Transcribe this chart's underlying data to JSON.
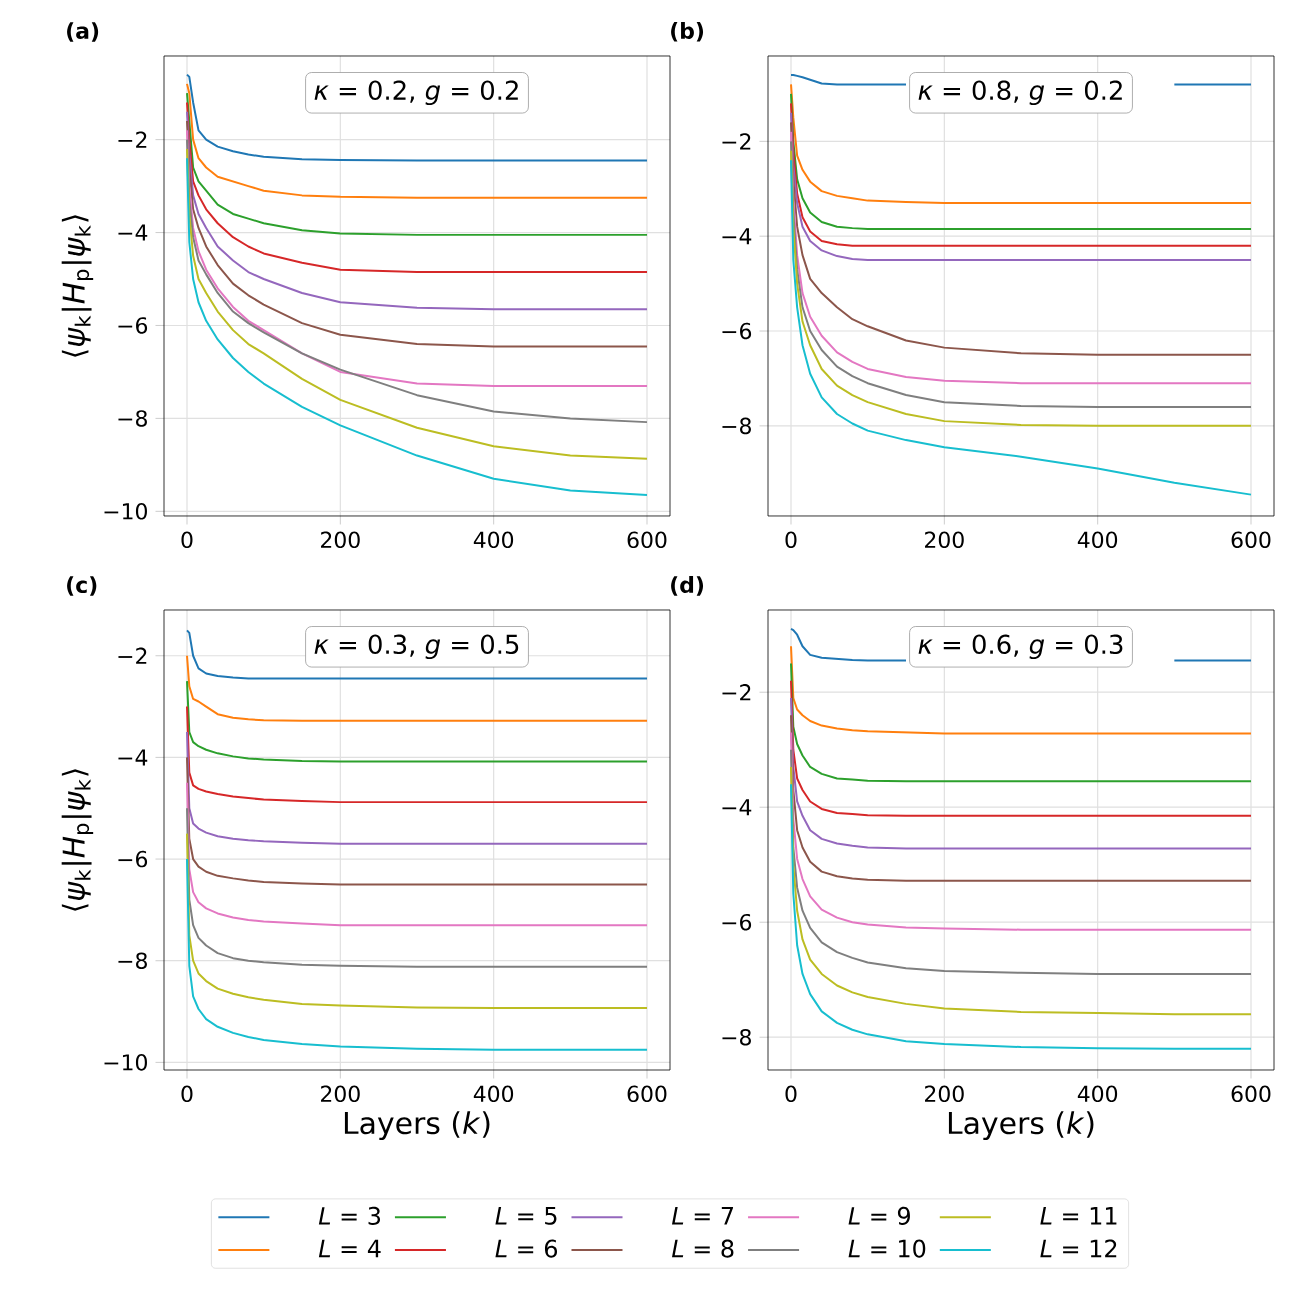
{
  "chart_data": [
    {
      "type": "line",
      "title": "(a)",
      "ylabel": "⟨*ψ*$_{k}$|*H*$_{p}$|*ψ*$_{k}$⟩",
      "annotations": [
        "*κ* = 0.2, *g* = 0.2"
      ],
      "grid": true,
      "legend": "bottom",
      "x": [
        0,
        3,
        8,
        15,
        25,
        40,
        60,
        80,
        100,
        150,
        200,
        300,
        400,
        500,
        600
      ],
      "xlim": [
        -30,
        630
      ],
      "ylim": [
        -10.1,
        -0.2
      ],
      "xticks": [
        0,
        200,
        400,
        600
      ],
      "yticks": [
        {
          "value": -10,
          "label": "−10"
        },
        {
          "value": -8,
          "label": "−8"
        },
        {
          "value": -6,
          "label": "−6"
        },
        {
          "value": -4,
          "label": "−4"
        },
        {
          "value": -2,
          "label": "−2"
        }
      ],
      "series": [
        {
          "name": "*L* = 3",
          "color": "#1f77b4",
          "values": [
            -0.6,
            -0.65,
            -1.2,
            -1.8,
            -2.0,
            -2.15,
            -2.25,
            -2.32,
            -2.37,
            -2.42,
            -2.44,
            -2.45,
            -2.45,
            -2.45,
            -2.45
          ]
        },
        {
          "name": "*L* = 4",
          "color": "#ff7f0e",
          "values": [
            -0.8,
            -1.0,
            -2.0,
            -2.4,
            -2.6,
            -2.8,
            -2.9,
            -3.0,
            -3.1,
            -3.2,
            -3.23,
            -3.25,
            -3.25,
            -3.25,
            -3.25
          ]
        },
        {
          "name": "*L* = 5",
          "color": "#2ca02c",
          "values": [
            -1.0,
            -1.6,
            -2.6,
            -2.9,
            -3.1,
            -3.4,
            -3.6,
            -3.7,
            -3.8,
            -3.95,
            -4.02,
            -4.05,
            -4.05,
            -4.05,
            -4.05
          ]
        },
        {
          "name": "*L* = 6",
          "color": "#d62728",
          "values": [
            -1.2,
            -2.0,
            -2.9,
            -3.2,
            -3.5,
            -3.8,
            -4.1,
            -4.3,
            -4.45,
            -4.65,
            -4.8,
            -4.85,
            -4.85,
            -4.85,
            -4.85
          ]
        },
        {
          "name": "*L* = 7",
          "color": "#9467bd",
          "values": [
            -1.4,
            -2.3,
            -3.2,
            -3.6,
            -3.9,
            -4.3,
            -4.6,
            -4.85,
            -5.0,
            -5.3,
            -5.5,
            -5.62,
            -5.65,
            -5.65,
            -5.65
          ]
        },
        {
          "name": "*L* = 8",
          "color": "#8c564b",
          "values": [
            -1.6,
            -2.6,
            -3.5,
            -3.9,
            -4.3,
            -4.7,
            -5.1,
            -5.35,
            -5.55,
            -5.95,
            -6.2,
            -6.4,
            -6.45,
            -6.45,
            -6.45
          ]
        },
        {
          "name": "*L* = 9",
          "color": "#e377c2",
          "values": [
            -1.8,
            -3.0,
            -3.9,
            -4.4,
            -4.8,
            -5.2,
            -5.6,
            -5.9,
            -6.1,
            -6.6,
            -7.0,
            -7.25,
            -7.3,
            -7.3,
            -7.3
          ]
        },
        {
          "name": "*L* = 10",
          "color": "#7f7f7f",
          "values": [
            -2.0,
            -3.3,
            -4.1,
            -4.6,
            -4.9,
            -5.3,
            -5.7,
            -5.95,
            -6.15,
            -6.6,
            -6.95,
            -7.5,
            -7.85,
            -8.0,
            -8.08
          ]
        },
        {
          "name": "*L* = 11",
          "color": "#bcbd22",
          "values": [
            -2.2,
            -3.6,
            -4.5,
            -5.0,
            -5.3,
            -5.7,
            -6.1,
            -6.4,
            -6.6,
            -7.15,
            -7.6,
            -8.2,
            -8.6,
            -8.8,
            -8.87
          ]
        },
        {
          "name": "*L* = 12",
          "color": "#17becf",
          "values": [
            -2.4,
            -4.2,
            -5.0,
            -5.5,
            -5.9,
            -6.3,
            -6.7,
            -7.0,
            -7.25,
            -7.75,
            -8.15,
            -8.8,
            -9.3,
            -9.55,
            -9.65
          ]
        }
      ]
    },
    {
      "type": "line",
      "title": "(b)",
      "annotations": [
        "*κ* = 0.8, *g* = 0.2"
      ],
      "grid": true,
      "x": [
        0,
        3,
        8,
        15,
        25,
        40,
        60,
        80,
        100,
        150,
        200,
        300,
        400,
        500,
        600
      ],
      "xlim": [
        -30,
        630
      ],
      "ylim": [
        -9.9,
        -0.2
      ],
      "xticks": [
        0,
        200,
        400,
        600
      ],
      "yticks": [
        {
          "value": -8,
          "label": "−8"
        },
        {
          "value": -6,
          "label": "−6"
        },
        {
          "value": -4,
          "label": "−4"
        },
        {
          "value": -2,
          "label": "−2"
        }
      ],
      "series": [
        {
          "color": "#1f77b4",
          "values": [
            -0.6,
            -0.6,
            -0.62,
            -0.65,
            -0.7,
            -0.78,
            -0.8,
            -0.8,
            -0.8,
            -0.8,
            null,
            null,
            null,
            -0.8,
            -0.8
          ]
        },
        {
          "color": "#ff7f0e",
          "values": [
            -0.8,
            -1.5,
            -2.3,
            -2.6,
            -2.85,
            -3.05,
            -3.15,
            -3.2,
            -3.25,
            -3.28,
            -3.3,
            -3.3,
            -3.3,
            -3.3,
            -3.3
          ]
        },
        {
          "color": "#2ca02c",
          "values": [
            -1.0,
            -2.0,
            -2.8,
            -3.2,
            -3.5,
            -3.7,
            -3.8,
            -3.83,
            -3.85,
            -3.85,
            -3.85,
            -3.85,
            -3.85,
            -3.85,
            -3.85
          ]
        },
        {
          "color": "#d62728",
          "values": [
            -1.2,
            -2.2,
            -3.1,
            -3.6,
            -3.9,
            -4.1,
            -4.17,
            -4.2,
            -4.2,
            -4.2,
            -4.2,
            -4.2,
            -4.2,
            -4.2,
            -4.2
          ]
        },
        {
          "color": "#9467bd",
          "values": [
            -1.4,
            -2.5,
            -3.3,
            -3.8,
            -4.1,
            -4.3,
            -4.42,
            -4.48,
            -4.5,
            -4.5,
            -4.5,
            -4.5,
            -4.5,
            -4.5,
            -4.5
          ]
        },
        {
          "color": "#8c564b",
          "values": [
            -1.6,
            -2.8,
            -3.8,
            -4.4,
            -4.9,
            -5.2,
            -5.5,
            -5.75,
            -5.9,
            -6.2,
            -6.35,
            -6.47,
            -6.5,
            -6.5,
            -6.5
          ]
        },
        {
          "color": "#e377c2",
          "values": [
            -1.8,
            -3.2,
            -4.4,
            -5.2,
            -5.7,
            -6.1,
            -6.45,
            -6.65,
            -6.8,
            -6.97,
            -7.05,
            -7.1,
            -7.1,
            -7.1,
            -7.1
          ]
        },
        {
          "color": "#7f7f7f",
          "values": [
            -2.0,
            -3.5,
            -4.7,
            -5.5,
            -6.0,
            -6.4,
            -6.75,
            -6.95,
            -7.1,
            -7.35,
            -7.5,
            -7.58,
            -7.6,
            -7.6,
            -7.6
          ]
        },
        {
          "color": "#bcbd22",
          "values": [
            -2.2,
            -3.8,
            -5.0,
            -5.8,
            -6.3,
            -6.8,
            -7.15,
            -7.35,
            -7.5,
            -7.75,
            -7.9,
            -7.98,
            -8.0,
            -8.0,
            -8.0
          ]
        },
        {
          "color": "#17becf",
          "values": [
            -2.4,
            -4.5,
            -5.5,
            -6.3,
            -6.9,
            -7.4,
            -7.75,
            -7.95,
            -8.1,
            -8.3,
            -8.45,
            -8.65,
            -8.9,
            -9.2,
            -9.45
          ]
        }
      ]
    },
    {
      "type": "line",
      "title": "(c)",
      "xlabel": "Layers (*k*)",
      "ylabel": "⟨*ψ*$_{k}$|*H*$_{p}$|*ψ*$_{k}$⟩",
      "annotations": [
        "*κ* = 0.3, *g* = 0.5"
      ],
      "grid": true,
      "x": [
        0,
        3,
        8,
        15,
        25,
        40,
        60,
        80,
        100,
        150,
        200,
        300,
        400,
        500,
        600
      ],
      "xlim": [
        -30,
        630
      ],
      "ylim": [
        -10.15,
        -1.1
      ],
      "xticks": [
        0,
        200,
        400,
        600
      ],
      "yticks": [
        {
          "value": -10,
          "label": "−10"
        },
        {
          "value": -8,
          "label": "−8"
        },
        {
          "value": -6,
          "label": "−6"
        },
        {
          "value": -4,
          "label": "−4"
        },
        {
          "value": -2,
          "label": "−2"
        }
      ],
      "series": [
        {
          "color": "#1f77b4",
          "values": [
            -1.5,
            -1.55,
            -2.0,
            -2.25,
            -2.35,
            -2.4,
            -2.43,
            -2.45,
            -2.45,
            -2.45,
            -2.45,
            -2.45,
            -2.45,
            -2.45,
            -2.45
          ]
        },
        {
          "color": "#ff7f0e",
          "values": [
            -2.0,
            -2.6,
            -2.85,
            -2.9,
            -3.0,
            -3.15,
            -3.22,
            -3.25,
            -3.27,
            -3.28,
            -3.28,
            -3.28,
            -3.28,
            -3.28,
            -3.28
          ]
        },
        {
          "color": "#2ca02c",
          "values": [
            -2.5,
            -3.5,
            -3.7,
            -3.78,
            -3.85,
            -3.92,
            -3.98,
            -4.02,
            -4.04,
            -4.07,
            -4.08,
            -4.08,
            -4.08,
            -4.08,
            -4.08
          ]
        },
        {
          "color": "#d62728",
          "values": [
            -3.0,
            -4.3,
            -4.55,
            -4.62,
            -4.67,
            -4.72,
            -4.77,
            -4.8,
            -4.83,
            -4.86,
            -4.88,
            -4.88,
            -4.88,
            -4.88,
            -4.88
          ]
        },
        {
          "color": "#9467bd",
          "values": [
            -3.5,
            -5.0,
            -5.3,
            -5.4,
            -5.48,
            -5.55,
            -5.6,
            -5.63,
            -5.65,
            -5.68,
            -5.7,
            -5.7,
            -5.7,
            -5.7,
            -5.7
          ]
        },
        {
          "color": "#8c564b",
          "values": [
            -4.0,
            -5.6,
            -6.0,
            -6.15,
            -6.25,
            -6.33,
            -6.38,
            -6.42,
            -6.45,
            -6.48,
            -6.5,
            -6.5,
            -6.5,
            -6.5,
            -6.5
          ]
        },
        {
          "color": "#e377c2",
          "values": [
            -4.5,
            -6.2,
            -6.65,
            -6.85,
            -6.97,
            -7.07,
            -7.15,
            -7.2,
            -7.23,
            -7.27,
            -7.3,
            -7.3,
            -7.3,
            -7.3,
            -7.3
          ]
        },
        {
          "color": "#7f7f7f",
          "values": [
            -5.0,
            -6.8,
            -7.3,
            -7.55,
            -7.7,
            -7.85,
            -7.95,
            -8.0,
            -8.03,
            -8.08,
            -8.1,
            -8.12,
            -8.12,
            -8.12,
            -8.12
          ]
        },
        {
          "color": "#bcbd22",
          "values": [
            -5.5,
            -7.5,
            -8.0,
            -8.25,
            -8.4,
            -8.55,
            -8.65,
            -8.72,
            -8.77,
            -8.85,
            -8.88,
            -8.92,
            -8.93,
            -8.93,
            -8.93
          ]
        },
        {
          "color": "#17becf",
          "values": [
            -6.0,
            -8.1,
            -8.7,
            -8.95,
            -9.15,
            -9.3,
            -9.42,
            -9.5,
            -9.56,
            -9.64,
            -9.69,
            -9.73,
            -9.75,
            -9.75,
            -9.75
          ]
        }
      ]
    },
    {
      "type": "line",
      "title": "(d)",
      "xlabel": "Layers (*k*)",
      "annotations": [
        "*κ* = 0.6, *g* = 0.3"
      ],
      "grid": true,
      "x": [
        0,
        3,
        8,
        15,
        25,
        40,
        60,
        80,
        100,
        150,
        200,
        300,
        400,
        500,
        600
      ],
      "xlim": [
        -30,
        630
      ],
      "ylim": [
        -8.57,
        -0.57
      ],
      "xticks": [
        0,
        200,
        400,
        600
      ],
      "yticks": [
        {
          "value": -8,
          "label": "−8"
        },
        {
          "value": -6,
          "label": "−6"
        },
        {
          "value": -4,
          "label": "−4"
        },
        {
          "value": -2,
          "label": "−2"
        }
      ],
      "series": [
        {
          "color": "#1f77b4",
          "values": [
            -0.9,
            -0.92,
            -1.0,
            -1.2,
            -1.35,
            -1.4,
            -1.42,
            -1.44,
            -1.45,
            -1.45,
            null,
            null,
            null,
            -1.45,
            -1.45
          ]
        },
        {
          "color": "#ff7f0e",
          "values": [
            -1.2,
            -2.1,
            -2.3,
            -2.4,
            -2.5,
            -2.58,
            -2.63,
            -2.66,
            -2.68,
            -2.7,
            -2.72,
            -2.72,
            -2.72,
            -2.72,
            -2.72
          ]
        },
        {
          "color": "#2ca02c",
          "values": [
            -1.5,
            -2.6,
            -2.9,
            -3.1,
            -3.3,
            -3.42,
            -3.5,
            -3.52,
            -3.54,
            -3.55,
            -3.55,
            -3.55,
            -3.55,
            -3.55,
            -3.55
          ]
        },
        {
          "color": "#d62728",
          "values": [
            -1.8,
            -3.0,
            -3.5,
            -3.7,
            -3.9,
            -4.03,
            -4.1,
            -4.12,
            -4.14,
            -4.15,
            -4.15,
            -4.15,
            -4.15,
            -4.15,
            -4.15
          ]
        },
        {
          "color": "#9467bd",
          "values": [
            -2.1,
            -3.3,
            -3.9,
            -4.15,
            -4.4,
            -4.55,
            -4.63,
            -4.67,
            -4.7,
            -4.72,
            -4.72,
            -4.72,
            -4.72,
            -4.72,
            -4.72
          ]
        },
        {
          "color": "#8c564b",
          "values": [
            -2.4,
            -3.7,
            -4.4,
            -4.7,
            -4.95,
            -5.12,
            -5.2,
            -5.24,
            -5.26,
            -5.28,
            -5.28,
            -5.28,
            -5.28,
            -5.28,
            -5.28
          ]
        },
        {
          "color": "#e377c2",
          "values": [
            -2.7,
            -4.2,
            -4.9,
            -5.25,
            -5.55,
            -5.78,
            -5.92,
            -6.0,
            -6.04,
            -6.09,
            -6.11,
            -6.13,
            -6.13,
            -6.13,
            -6.13
          ]
        },
        {
          "color": "#7f7f7f",
          "values": [
            -3.0,
            -4.7,
            -5.4,
            -5.8,
            -6.1,
            -6.35,
            -6.52,
            -6.62,
            -6.7,
            -6.8,
            -6.85,
            -6.88,
            -6.9,
            -6.9,
            -6.9
          ]
        },
        {
          "color": "#bcbd22",
          "values": [
            -3.3,
            -5.0,
            -5.8,
            -6.3,
            -6.65,
            -6.9,
            -7.1,
            -7.22,
            -7.3,
            -7.42,
            -7.5,
            -7.56,
            -7.58,
            -7.6,
            -7.6
          ]
        },
        {
          "color": "#17becf",
          "values": [
            -3.6,
            -5.5,
            -6.4,
            -6.9,
            -7.25,
            -7.55,
            -7.75,
            -7.87,
            -7.95,
            -8.07,
            -8.12,
            -8.17,
            -8.19,
            -8.2,
            -8.2
          ]
        }
      ]
    }
  ]
}
